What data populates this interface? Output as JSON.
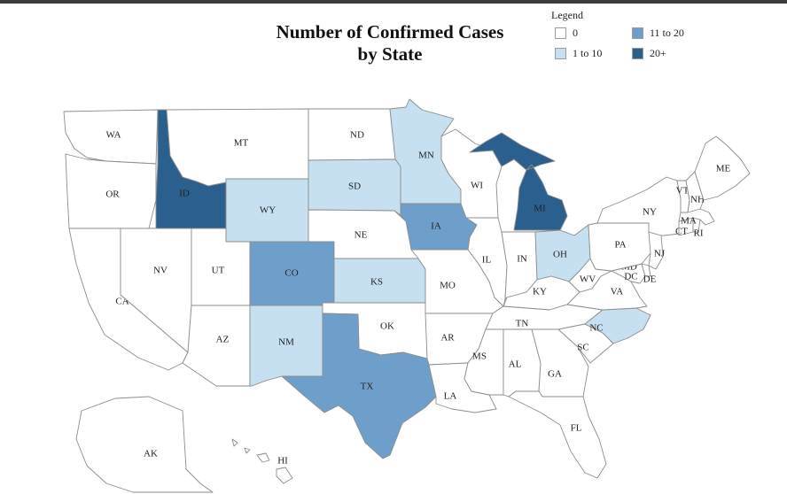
{
  "title_line1": "Number of Confirmed Cases",
  "title_line2": "by State",
  "legend": {
    "title": "Legend",
    "items": [
      {
        "label": "0",
        "color": "#ffffff"
      },
      {
        "label": "1 to 10",
        "color": "#c6e0f1"
      },
      {
        "label": "11 to 20",
        "color": "#6e9fcb"
      },
      {
        "label": "20+",
        "color": "#2b5f8e"
      }
    ]
  },
  "states": [
    {
      "abbr": "WA",
      "category": 0
    },
    {
      "abbr": "OR",
      "category": 0
    },
    {
      "abbr": "CA",
      "category": 0
    },
    {
      "abbr": "ID",
      "category": 3
    },
    {
      "abbr": "NV",
      "category": 0
    },
    {
      "abbr": "MT",
      "category": 0
    },
    {
      "abbr": "WY",
      "category": 1
    },
    {
      "abbr": "UT",
      "category": 0
    },
    {
      "abbr": "AZ",
      "category": 0
    },
    {
      "abbr": "CO",
      "category": 2
    },
    {
      "abbr": "NM",
      "category": 1
    },
    {
      "abbr": "ND",
      "category": 0
    },
    {
      "abbr": "SD",
      "category": 1
    },
    {
      "abbr": "NE",
      "category": 0
    },
    {
      "abbr": "KS",
      "category": 1
    },
    {
      "abbr": "OK",
      "category": 0
    },
    {
      "abbr": "TX",
      "category": 2
    },
    {
      "abbr": "MN",
      "category": 1
    },
    {
      "abbr": "IA",
      "category": 2
    },
    {
      "abbr": "MO",
      "category": 0
    },
    {
      "abbr": "AR",
      "category": 0
    },
    {
      "abbr": "LA",
      "category": 0
    },
    {
      "abbr": "WI",
      "category": 0
    },
    {
      "abbr": "IL",
      "category": 0
    },
    {
      "abbr": "MI",
      "category": 3
    },
    {
      "abbr": "IN",
      "category": 0
    },
    {
      "abbr": "OH",
      "category": 1
    },
    {
      "abbr": "KY",
      "category": 0
    },
    {
      "abbr": "TN",
      "category": 0
    },
    {
      "abbr": "MS",
      "category": 0
    },
    {
      "abbr": "AL",
      "category": 0
    },
    {
      "abbr": "GA",
      "category": 0
    },
    {
      "abbr": "FL",
      "category": 0
    },
    {
      "abbr": "SC",
      "category": 0
    },
    {
      "abbr": "NC",
      "category": 1
    },
    {
      "abbr": "VA",
      "category": 0
    },
    {
      "abbr": "WV",
      "category": 0
    },
    {
      "abbr": "MD",
      "category": 0
    },
    {
      "abbr": "DC",
      "category": 0
    },
    {
      "abbr": "DE",
      "category": 0
    },
    {
      "abbr": "PA",
      "category": 0
    },
    {
      "abbr": "NJ",
      "category": 0
    },
    {
      "abbr": "NY",
      "category": 0
    },
    {
      "abbr": "CT",
      "category": 0
    },
    {
      "abbr": "RI",
      "category": 0
    },
    {
      "abbr": "MA",
      "category": 0
    },
    {
      "abbr": "VT",
      "category": 0
    },
    {
      "abbr": "NH",
      "category": 0
    },
    {
      "abbr": "ME",
      "category": 0
    },
    {
      "abbr": "AK",
      "category": 0
    },
    {
      "abbr": "HI",
      "category": 0
    }
  ]
}
